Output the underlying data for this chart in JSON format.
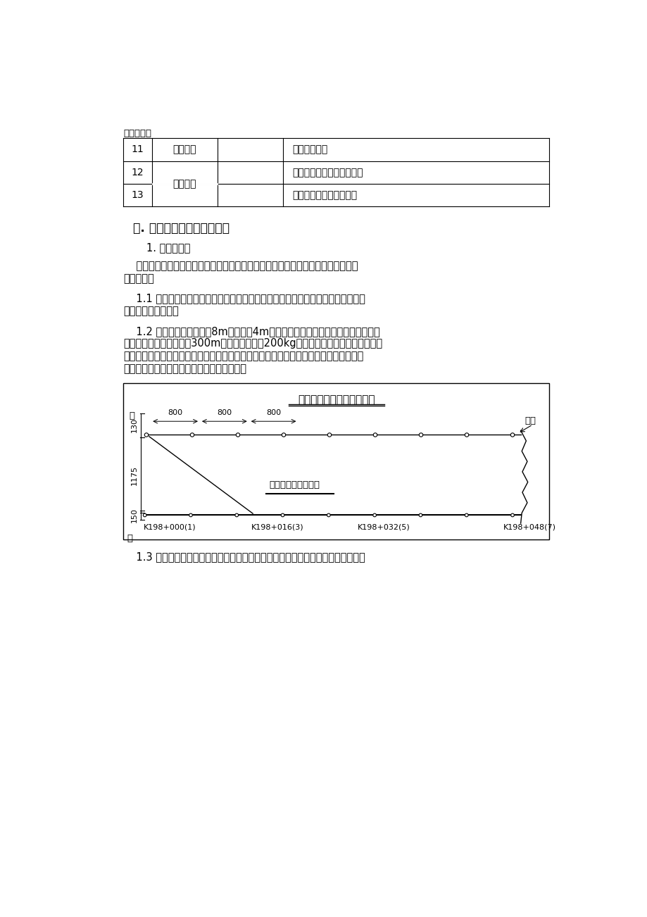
{
  "page_bg": "#ffffff",
  "font_family": "SimSun",
  "continued_table": {
    "label": "（续上表）",
    "rows": [
      {
        "num": "11",
        "col2": "后盘施工",
        "col4": "后盘施工组织",
        "span_col2": false
      },
      {
        "num": "12",
        "col2": "物资供应",
        "col4": "前后盘施工材料供应负责人",
        "span_col2": true
      },
      {
        "num": "13",
        "col2": "",
        "col4": "组织前后盘施工材料进场",
        "span_col2": true
      }
    ]
  },
  "section3_title": "三. 施工准备阶段各部门工作",
  "section1_title": "1. 测量队工作",
  "para1_lines": [
    "    项目建设中，精确有效的测量工作是保证路面施工质量的关键，测量工程师要作好",
    "以下工作："
  ],
  "para11_lines": [
    "    1.1 准确完成水准点、导线点的复测和平差工作，为路面施工提供精确、可靠的高",
    "程、平面控制系统。"
  ],
  "para12_lines": [
    "    1.2 应用全站仪精确布放8m（弯道为4m）导线点位置、架设导线，水准仪精确测",
    "定导线标高，导线长度以300m左右为宜，要有200kg以上的张力和护桩。施工前和施",
    "工过程中应经常对导线检测，持续有效的控制推铺过程中的方向、标高和厚度。测量时，",
    "可以按着下示意图进行布点测高程（左幅）。"
  ],
  "diagram": {
    "title": "混凝土路面施工线桩布置图",
    "label_left_top": "进",
    "label_right_top": "线桩",
    "dim_130": "130",
    "dim_1175": "1175",
    "dim_150": "150",
    "spacing_labels": [
      "800",
      "800",
      "800"
    ],
    "road_label": "混凝土路面设计边线",
    "station_labels": [
      "K198+000(1)",
      "K198+016(3)",
      "K198+032(5)",
      "K198+048(7)"
    ],
    "label_bottom_left": "中"
  },
  "para13_line": "    1.3 对于设置传力杆位置的横向缩缝要在地面做标记，保证切缝后，使传力杆与缩"
}
